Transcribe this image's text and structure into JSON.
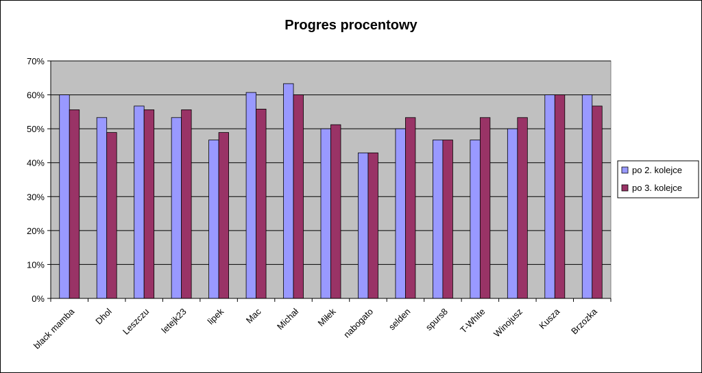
{
  "chart_data": {
    "type": "bar",
    "title": "Progres procentowy",
    "xlabel": "",
    "ylabel": "",
    "ylim": [
      0,
      0.7
    ],
    "yticks": [
      "0%",
      "10%",
      "20%",
      "30%",
      "40%",
      "50%",
      "60%",
      "70%"
    ],
    "grid": true,
    "legend_position": "right",
    "plot_background": "#C0C0C0",
    "categories": [
      "black mamba",
      "Dhol",
      "Leszczu",
      "letejk23",
      "lipek",
      "Mac",
      "Michał",
      "Miłek",
      "nabogato",
      "selden",
      "spurs8",
      "T-White",
      "Winojusz",
      "Kusza",
      "Brzozka"
    ],
    "series": [
      {
        "name": "po 2. kolejce",
        "color": "#9999FF",
        "values": [
          0.6,
          0.533,
          0.567,
          0.533,
          0.467,
          0.607,
          0.633,
          0.5,
          0.429,
          0.5,
          0.467,
          0.467,
          0.5,
          0.6,
          0.6
        ]
      },
      {
        "name": "po 3. kolejce",
        "color": "#993366",
        "values": [
          0.556,
          0.489,
          0.556,
          0.556,
          0.489,
          0.558,
          0.6,
          0.512,
          0.429,
          0.533,
          0.467,
          0.533,
          0.533,
          0.6,
          0.567
        ]
      }
    ]
  }
}
